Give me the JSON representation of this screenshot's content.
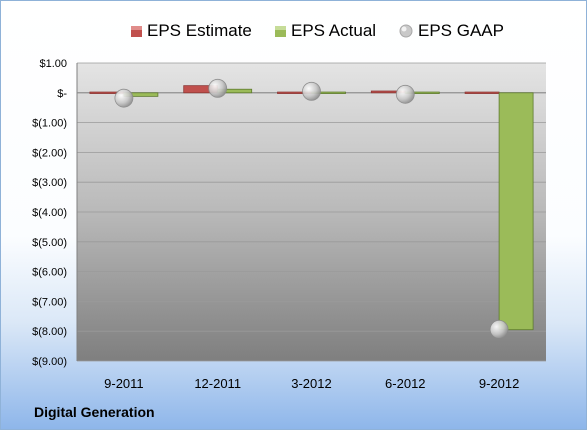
{
  "chart_data": {
    "type": "bar",
    "categories": [
      "9-2011",
      "12-2011",
      "3-2012",
      "6-2012",
      "9-2012"
    ],
    "series": [
      {
        "name": "EPS Estimate",
        "values": [
          0.0,
          0.24,
          0.0,
          0.06,
          0.02
        ],
        "color": "#c0504d",
        "marker": "bar"
      },
      {
        "name": "EPS Actual",
        "values": [
          -0.12,
          0.12,
          0.0,
          -0.03,
          -7.95
        ],
        "color": "#9bbb59",
        "marker": "bar"
      },
      {
        "name": "EPS GAAP",
        "values": [
          -0.18,
          0.15,
          0.05,
          -0.05,
          -7.94
        ],
        "color": "#bfbfbf",
        "marker": "bubble"
      }
    ],
    "ylim": [
      -9,
      1
    ],
    "yticks": [
      1,
      0,
      -1,
      -2,
      -3,
      -4,
      -5,
      -6,
      -7,
      -8,
      -9
    ],
    "ytick_labels": [
      "$1.00",
      "$-",
      "$(1.00)",
      "$(2.00)",
      "$(3.00)",
      "$(4.00)",
      "$(5.00)",
      "$(6.00)",
      "$(7.00)",
      "$(8.00)",
      "$(9.00)"
    ],
    "grid": true,
    "legend_position": "top"
  },
  "footer": {
    "company": "Digital Generation"
  }
}
